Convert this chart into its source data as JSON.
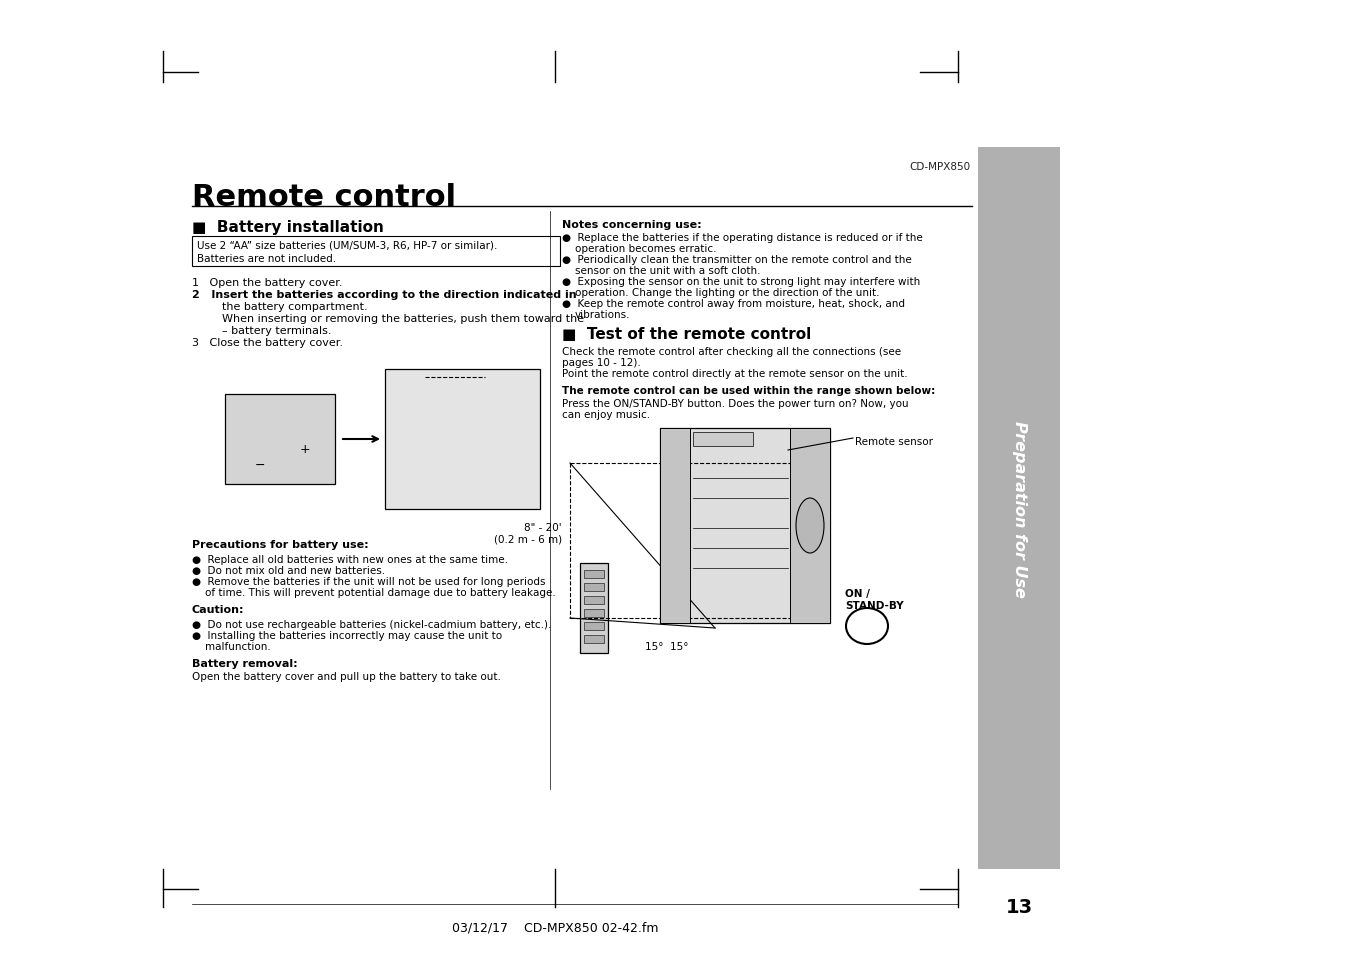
{
  "bg_color": "#ffffff",
  "sidebar_color": "#b0b0b0",
  "sidebar_text": "Preparation for Use",
  "sidebar_text_color": "#ffffff",
  "page_number": "13",
  "top_label": "CD-MPX850",
  "title": "Remote control",
  "section1_header": "■  Battery installation",
  "section1_box_text": "Use 2 “AA” size batteries (UM/SUM-3, R6, HP-7 or similar).\nBatteries are not included.",
  "steps": [
    "1   Open the battery cover.",
    "2   Insert the batteries according to the direction indicated in\n    the battery compartment.\n    When inserting or removing the batteries, push them toward the\n    – battery terminals.",
    "3   Close the battery cover."
  ],
  "precautions_header": "Precautions for battery use:",
  "precautions": [
    "Replace all old batteries with new ones at the same time.",
    "Do not mix old and new batteries.",
    "Remove the batteries if the unit will not be used for long periods\nof time. This will prevent potential damage due to battery leakage."
  ],
  "caution_header": "Caution:",
  "caution": [
    "Do not use rechargeable batteries (nickel-cadmium battery, etc.).",
    "Installing the batteries incorrectly may cause the unit to\nmalfunction."
  ],
  "battery_removal_header": "Battery removal:",
  "battery_removal": "Open the battery cover and pull up the battery to take out.",
  "notes_header": "Notes concerning use:",
  "notes": [
    "Replace the batteries if the operating distance is reduced or if the\noperation becomes erratic.",
    "Periodically clean the transmitter on the remote control and the\nsensor on the unit with a soft cloth.",
    "Exposing the sensor on the unit to strong light may interfere with\noperation. Change the lighting or the direction of the unit.",
    "Keep the remote control away from moisture, heat, shock, and\nvibrations."
  ],
  "section2_header": "■  Test of the remote control",
  "test_text1": "Check the remote control after checking all the connections (see\npages 10 - 12).\nPoint the remote control directly at the remote sensor on the unit.",
  "test_bold": "The remote control can be used within the range shown below:",
  "test_text2": "Press the ON/STAND-BY button. Does the power turn on? Now, you\ncan enjoy music.",
  "remote_sensor_label": "Remote sensor",
  "on_standby_label": "ON /\nSTAND-BY",
  "range_label": "8\" - 20'\n(0.2 m - 6 m)",
  "angle_label": "15°  15°",
  "footer_text": "03/12/17    CD-MPX850 02-42.fm"
}
